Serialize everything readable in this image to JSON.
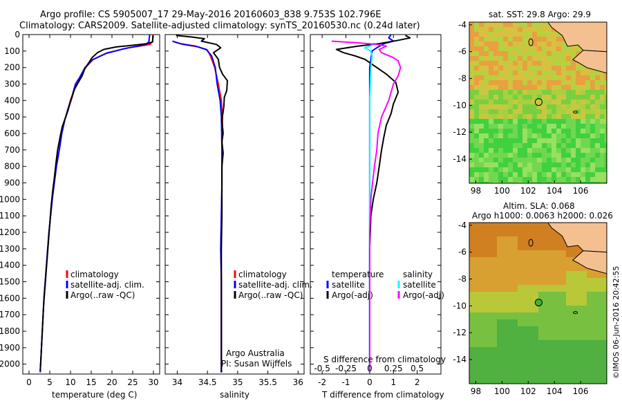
{
  "header": {
    "title": "Argo profile: CS 5905007_17 29-May-2016 20160603_838 9.753S 102.796E",
    "subtitle": "Climatology: CARS2009. Satellite-adjusted climatology: synTS_20160530.nc (0.24d later)"
  },
  "credit": {
    "agency": "Argo Australia",
    "pi": "PI: Susan Wijffels",
    "watermark": "©IMOS 06-Jun-2016 20:42:55"
  },
  "colors": {
    "climatology": "#ff0000",
    "satellite": "#0000ff",
    "argo": "#000000",
    "t_satellite": "#0000ff",
    "s_satellite": "#00ffff",
    "s_argo": "#ff00ff",
    "land": "#f4c090"
  },
  "maps": {
    "sst": {
      "title": "sat. SST: 29.8  Argo: 29.9",
      "xticks": [
        "98",
        "100",
        "102",
        "104",
        "106"
      ],
      "yticks": [
        "-4",
        "-6",
        "-8",
        "-10",
        "-12",
        "-14"
      ],
      "xlim": [
        97.5,
        108
      ],
      "ylim": [
        -15.8,
        -3.8
      ],
      "float_position": {
        "lon": 102.796,
        "lat": -9.753
      }
    },
    "sla": {
      "title1": "Altim. SLA: 0.068",
      "title2": "Argo h1000: 0.0063  h2000: 0.026",
      "xticks": [
        "98",
        "100",
        "102",
        "104",
        "106"
      ],
      "yticks": [
        "-4",
        "-6",
        "-8",
        "-10",
        "-12",
        "-14"
      ],
      "xlim": [
        97.5,
        108
      ],
      "ylim": [
        -15.8,
        -3.8
      ],
      "float_position": {
        "lon": 102.796,
        "lat": -9.753
      }
    }
  },
  "chart_data": [
    {
      "type": "line",
      "id": "temperature",
      "xlabel": "temperature (deg C)",
      "xticks": [
        0,
        5,
        10,
        15,
        20,
        25,
        30
      ],
      "xlim": [
        -1.5,
        31.5
      ],
      "ylim": [
        2060,
        0
      ],
      "yticks": [
        0,
        100,
        200,
        300,
        400,
        500,
        600,
        700,
        800,
        900,
        1000,
        1100,
        1200,
        1300,
        1400,
        1500,
        1600,
        1700,
        1800,
        1900,
        2000
      ],
      "legend": [
        "climatology",
        "satellite-adj. clim.",
        "Argo(..raw -QC)"
      ],
      "series": [
        {
          "name": "climatology",
          "points": [
            [
              29.9,
              0
            ],
            [
              29.8,
              40
            ],
            [
              29.2,
              60
            ],
            [
              24,
              80
            ],
            [
              19,
              110
            ],
            [
              15.5,
              150
            ],
            [
              13.6,
              200
            ],
            [
              12.3,
              260
            ],
            [
              11.3,
              300
            ],
            [
              10.4,
              380
            ],
            [
              9.5,
              450
            ],
            [
              8.6,
              520
            ],
            [
              7.9,
              600
            ],
            [
              7.3,
              700
            ],
            [
              6.6,
              800
            ],
            [
              6.1,
              900
            ],
            [
              5.6,
              1000
            ],
            [
              5.2,
              1100
            ],
            [
              4.8,
              1200
            ],
            [
              4.5,
              1300
            ],
            [
              4.2,
              1400
            ],
            [
              3.9,
              1500
            ],
            [
              3.6,
              1600
            ],
            [
              3.4,
              1700
            ],
            [
              3.2,
              1800
            ],
            [
              3.0,
              1900
            ],
            [
              2.8,
              2000
            ],
            [
              2.7,
              2050
            ]
          ]
        },
        {
          "name": "satellite-adj. clim.",
          "points": [
            [
              29.1,
              0
            ],
            [
              28.9,
              45
            ],
            [
              28,
              62
            ],
            [
              23,
              85
            ],
            [
              18.5,
              115
            ],
            [
              15.2,
              155
            ],
            [
              13.5,
              200
            ],
            [
              12.2,
              260
            ],
            [
              11.2,
              300
            ],
            [
              10.3,
              380
            ],
            [
              9.4,
              450
            ],
            [
              8.6,
              520
            ],
            [
              7.9,
              600
            ],
            [
              7.3,
              700
            ],
            [
              6.6,
              800
            ],
            [
              6.1,
              900
            ],
            [
              5.6,
              1000
            ],
            [
              5.2,
              1100
            ],
            [
              4.8,
              1200
            ],
            [
              4.5,
              1300
            ],
            [
              4.2,
              1400
            ],
            [
              3.9,
              1500
            ],
            [
              3.6,
              1600
            ],
            [
              3.4,
              1700
            ],
            [
              3.2,
              1800
            ],
            [
              3.0,
              1900
            ],
            [
              2.8,
              2000
            ],
            [
              2.7,
              2050
            ]
          ]
        },
        {
          "name": "Argo(..raw -QC)",
          "points": [
            [
              29.9,
              5
            ],
            [
              29.8,
              45
            ],
            [
              28.5,
              55
            ],
            [
              25,
              65
            ],
            [
              21,
              75
            ],
            [
              18,
              90
            ],
            [
              16.5,
              110
            ],
            [
              15.2,
              140
            ],
            [
              14.3,
              175
            ],
            [
              13.4,
              210
            ],
            [
              12.8,
              250
            ],
            [
              11.9,
              290
            ],
            [
              11.0,
              330
            ],
            [
              10.0,
              400
            ],
            [
              9.4,
              460
            ],
            [
              8.7,
              510
            ],
            [
              8.0,
              560
            ],
            [
              7.5,
              620
            ],
            [
              6.9,
              700
            ],
            [
              6.5,
              780
            ],
            [
              6.1,
              870
            ],
            [
              5.7,
              950
            ],
            [
              5.3,
              1050
            ],
            [
              5.0,
              1150
            ],
            [
              4.7,
              1250
            ],
            [
              4.4,
              1350
            ],
            [
              4.1,
              1450
            ],
            [
              3.8,
              1550
            ],
            [
              3.5,
              1650
            ],
            [
              3.3,
              1750
            ],
            [
              3.1,
              1850
            ],
            [
              2.9,
              1950
            ],
            [
              2.7,
              2040
            ]
          ]
        }
      ]
    },
    {
      "type": "line",
      "id": "salinity",
      "xlabel": "salinity",
      "xticks": [
        34,
        34.5,
        35,
        35.5,
        36
      ],
      "xlim": [
        33.8,
        36.1
      ],
      "ylim": [
        2060,
        0
      ],
      "legend": [
        "climatology",
        "satellite-adj. clim.",
        "Argo(..raw -QC)"
      ],
      "series": [
        {
          "name": "climatology",
          "points": [
            [
              33.95,
              45
            ],
            [
              34.1,
              60
            ],
            [
              34.35,
              75
            ],
            [
              34.5,
              95
            ],
            [
              34.55,
              130
            ],
            [
              34.62,
              200
            ],
            [
              34.68,
              300
            ],
            [
              34.73,
              400
            ],
            [
              34.75,
              500
            ],
            [
              34.74,
              700
            ],
            [
              34.74,
              900
            ],
            [
              34.73,
              1100
            ],
            [
              34.72,
              1300
            ],
            [
              34.73,
              1500
            ],
            [
              34.73,
              1700
            ],
            [
              34.73,
              2050
            ]
          ]
        },
        {
          "name": "satellite-adj. clim.",
          "points": [
            [
              33.92,
              40
            ],
            [
              34.05,
              55
            ],
            [
              34.3,
              70
            ],
            [
              34.48,
              90
            ],
            [
              34.57,
              130
            ],
            [
              34.63,
              200
            ],
            [
              34.66,
              300
            ],
            [
              34.71,
              400
            ],
            [
              34.73,
              500
            ],
            [
              34.74,
              700
            ],
            [
              34.74,
              900
            ],
            [
              34.73,
              1100
            ],
            [
              34.72,
              1300
            ],
            [
              34.73,
              1500
            ],
            [
              34.73,
              1700
            ],
            [
              34.73,
              2050
            ]
          ]
        },
        {
          "name": "Argo(..raw -QC)",
          "points": [
            [
              33.98,
              5
            ],
            [
              34.25,
              15
            ],
            [
              34.45,
              25
            ],
            [
              34.4,
              40
            ],
            [
              34.65,
              60
            ],
            [
              34.72,
              80
            ],
            [
              34.6,
              110
            ],
            [
              34.68,
              150
            ],
            [
              34.7,
              200
            ],
            [
              34.75,
              240
            ],
            [
              34.83,
              280
            ],
            [
              34.82,
              340
            ],
            [
              34.78,
              380
            ],
            [
              34.77,
              440
            ],
            [
              34.74,
              520
            ],
            [
              34.76,
              600
            ],
            [
              34.74,
              650
            ],
            [
              34.76,
              720
            ],
            [
              34.74,
              800
            ],
            [
              34.74,
              900
            ],
            [
              34.74,
              1100
            ],
            [
              34.73,
              1300
            ],
            [
              34.73,
              1500
            ],
            [
              34.73,
              1700
            ],
            [
              34.73,
              2050
            ]
          ]
        }
      ]
    },
    {
      "type": "line",
      "id": "difference",
      "xlabel": "T difference from climatology",
      "xlabel2": "S difference from climatology",
      "xticks": [
        -2,
        -1,
        0,
        1,
        2
      ],
      "xticks_s": [
        "-0.5",
        "-0.25",
        "0",
        "0.25",
        "0.5"
      ],
      "xlim": [
        -2.5,
        3.0
      ],
      "ylim": [
        2060,
        0
      ],
      "legend_titles": [
        "temperature",
        "salinity"
      ],
      "legend": [
        "satellite",
        "Argo(-adj)",
        "satellite",
        "Argo(-adj)"
      ],
      "series": [
        {
          "name": "temperature satellite",
          "points": [
            [
              0.9,
              0
            ],
            [
              0.8,
              20
            ],
            [
              1.0,
              40
            ],
            [
              0.6,
              55
            ],
            [
              0.3,
              80
            ],
            [
              0.1,
              100
            ],
            [
              0.05,
              150
            ],
            [
              0.0,
              200
            ],
            [
              0.0,
              400
            ],
            [
              0.0,
              800
            ],
            [
              0.0,
              1200
            ],
            [
              0.0,
              1600
            ],
            [
              0.0,
              2050
            ]
          ]
        },
        {
          "name": "temperature Argo(-adj)",
          "points": [
            [
              1.5,
              5
            ],
            [
              1.7,
              20
            ],
            [
              1.2,
              35
            ],
            [
              0.4,
              55
            ],
            [
              -0.5,
              70
            ],
            [
              -1.4,
              90
            ],
            [
              -1.1,
              110
            ],
            [
              -0.6,
              130
            ],
            [
              -0.2,
              150
            ],
            [
              0.3,
              200
            ],
            [
              0.7,
              240
            ],
            [
              1.1,
              290
            ],
            [
              1.2,
              350
            ],
            [
              1.0,
              420
            ],
            [
              0.9,
              480
            ],
            [
              0.7,
              550
            ],
            [
              0.6,
              620
            ],
            [
              0.5,
              700
            ],
            [
              0.4,
              800
            ],
            [
              0.3,
              900
            ],
            [
              0.15,
              1000
            ],
            [
              0.05,
              1100
            ],
            [
              0.0,
              1300
            ],
            [
              0.0,
              1600
            ],
            [
              0.0,
              2050
            ]
          ]
        },
        {
          "name": "salinity satellite",
          "points": [
            [
              0.2,
              50
            ],
            [
              0.1,
              65
            ],
            [
              -0.2,
              80
            ],
            [
              0.05,
              100
            ],
            [
              0.1,
              130
            ],
            [
              0.05,
              200
            ],
            [
              0.0,
              400
            ],
            [
              0.0,
              800
            ],
            [
              0.0,
              1200
            ],
            [
              0.0,
              2050
            ]
          ]
        },
        {
          "name": "salinity Argo(-adj)",
          "points": [
            [
              -1.6,
              40
            ],
            [
              -0.5,
              50
            ],
            [
              0.3,
              60
            ],
            [
              0.7,
              70
            ],
            [
              0.4,
              90
            ],
            [
              0.5,
              110
            ],
            [
              1.0,
              140
            ],
            [
              1.2,
              160
            ],
            [
              1.3,
              200
            ],
            [
              1.2,
              250
            ],
            [
              1.0,
              300
            ],
            [
              0.8,
              400
            ],
            [
              0.5,
              500
            ],
            [
              0.35,
              600
            ],
            [
              0.3,
              700
            ],
            [
              0.2,
              800
            ],
            [
              0.12,
              900
            ],
            [
              0.05,
              1000
            ],
            [
              0.0,
              1200
            ],
            [
              0.0,
              1600
            ],
            [
              0.0,
              2050
            ]
          ]
        }
      ]
    }
  ]
}
